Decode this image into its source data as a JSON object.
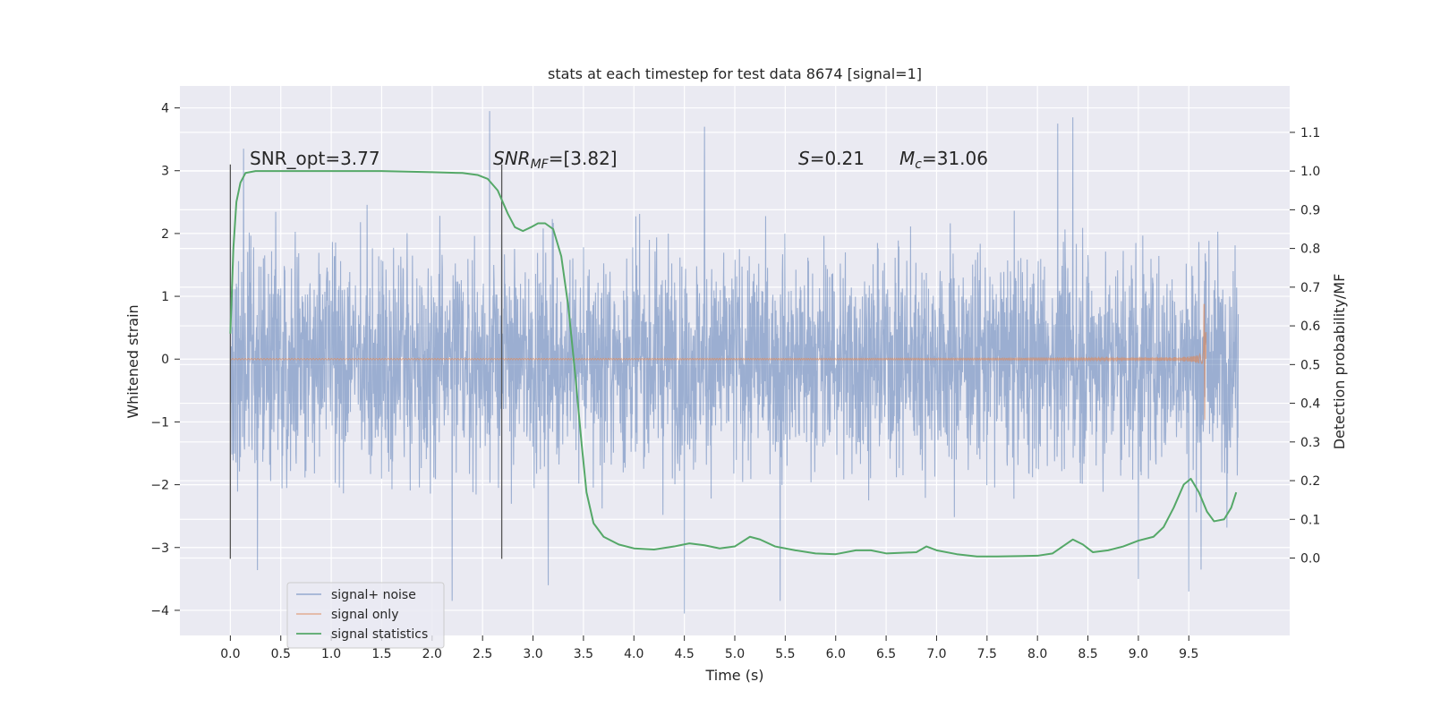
{
  "chart_data": {
    "type": "line",
    "title": "stats at each timestep for test data 8674 [signal=1]",
    "xlabel": "Time (s)",
    "ylabel": "Whitened strain",
    "ylabel_right": "Detection probability/MF",
    "xlim": [
      -0.5,
      10.5
    ],
    "ylim": [
      -4.4,
      4.35
    ],
    "ylim_right": [
      -0.2,
      1.22
    ],
    "xticks": [
      "0.0",
      "0.5",
      "1.0",
      "1.5",
      "2.0",
      "2.5",
      "3.0",
      "3.5",
      "4.0",
      "4.5",
      "5.0",
      "5.5",
      "6.0",
      "6.5",
      "7.0",
      "7.5",
      "8.0",
      "8.5",
      "9.0",
      "9.5"
    ],
    "yticks": [
      "−4",
      "−3",
      "−2",
      "−1",
      "0",
      "1",
      "2",
      "3",
      "4"
    ],
    "yticks_right": [
      "0.0",
      "0.1",
      "0.2",
      "0.3",
      "0.4",
      "0.5",
      "0.6",
      "0.7",
      "0.8",
      "0.9",
      "1.0",
      "1.1"
    ],
    "grid": true,
    "legend_position": "lower-left",
    "colors": {
      "noise": "#4c72b0",
      "signal": "#dd8452",
      "stat": "#55a868",
      "background": "#eaeaf2"
    },
    "annotations": {
      "snr_opt": "SNR_opt=3.77",
      "snr_mf_prefix": "SNR",
      "snr_mf_sub": "MF",
      "snr_mf_value": "=[3.82]",
      "s_var": "S",
      "s_value": "=0.21",
      "mc_var": "M",
      "mc_sub": "c",
      "mc_value": "=31.06"
    },
    "vlines": [
      {
        "x": 0.0,
        "y_range": [
          -3.18,
          3.1
        ]
      },
      {
        "x": 2.69,
        "y_range": [
          -3.18,
          3.1
        ]
      }
    ],
    "series": [
      {
        "name": "signal+ noise",
        "type": "noise",
        "x_range": [
          0.0,
          9.99
        ],
        "amplitude_envelope": 3.3,
        "extremes": [
          [
            0.13,
            3.35
          ],
          [
            0.27,
            -3.36
          ],
          [
            2.2,
            -3.85
          ],
          [
            2.57,
            3.95
          ],
          [
            3.15,
            -3.6
          ],
          [
            4.5,
            -4.05
          ],
          [
            4.7,
            3.7
          ],
          [
            5.45,
            -3.85
          ],
          [
            8.35,
            3.85
          ],
          [
            8.2,
            3.75
          ],
          [
            9.5,
            -3.7
          ],
          [
            9.0,
            -3.5
          ],
          [
            9.62,
            -3.35
          ]
        ]
      },
      {
        "name": "signal only",
        "type": "chirp",
        "x_range": [
          0.0,
          9.67
        ],
        "peak": 0.87,
        "trough": -0.97,
        "x_peak": 9.66
      },
      {
        "name": "signal statistics",
        "axis": "right",
        "points": [
          [
            0.0,
            0.58
          ],
          [
            0.03,
            0.8
          ],
          [
            0.06,
            0.92
          ],
          [
            0.1,
            0.97
          ],
          [
            0.15,
            0.995
          ],
          [
            0.25,
            1.0
          ],
          [
            0.5,
            1.0
          ],
          [
            1.0,
            1.0
          ],
          [
            1.5,
            1.0
          ],
          [
            2.0,
            0.997
          ],
          [
            2.3,
            0.995
          ],
          [
            2.45,
            0.99
          ],
          [
            2.55,
            0.98
          ],
          [
            2.65,
            0.95
          ],
          [
            2.75,
            0.89
          ],
          [
            2.82,
            0.855
          ],
          [
            2.9,
            0.845
          ],
          [
            2.98,
            0.855
          ],
          [
            3.05,
            0.865
          ],
          [
            3.12,
            0.865
          ],
          [
            3.2,
            0.85
          ],
          [
            3.28,
            0.78
          ],
          [
            3.35,
            0.65
          ],
          [
            3.42,
            0.47
          ],
          [
            3.48,
            0.3
          ],
          [
            3.53,
            0.17
          ],
          [
            3.6,
            0.09
          ],
          [
            3.7,
            0.055
          ],
          [
            3.85,
            0.035
          ],
          [
            4.0,
            0.025
          ],
          [
            4.2,
            0.022
          ],
          [
            4.4,
            0.03
          ],
          [
            4.55,
            0.038
          ],
          [
            4.7,
            0.033
          ],
          [
            4.85,
            0.025
          ],
          [
            5.0,
            0.03
          ],
          [
            5.15,
            0.055
          ],
          [
            5.25,
            0.048
          ],
          [
            5.4,
            0.03
          ],
          [
            5.6,
            0.02
          ],
          [
            5.8,
            0.012
          ],
          [
            6.0,
            0.01
          ],
          [
            6.2,
            0.02
          ],
          [
            6.35,
            0.02
          ],
          [
            6.5,
            0.012
          ],
          [
            6.8,
            0.015
          ],
          [
            6.9,
            0.03
          ],
          [
            7.0,
            0.02
          ],
          [
            7.2,
            0.01
          ],
          [
            7.4,
            0.004
          ],
          [
            7.6,
            0.004
          ],
          [
            8.0,
            0.006
          ],
          [
            8.15,
            0.012
          ],
          [
            8.25,
            0.03
          ],
          [
            8.35,
            0.048
          ],
          [
            8.45,
            0.035
          ],
          [
            8.55,
            0.015
          ],
          [
            8.7,
            0.02
          ],
          [
            8.85,
            0.03
          ],
          [
            9.0,
            0.045
          ],
          [
            9.15,
            0.055
          ],
          [
            9.25,
            0.08
          ],
          [
            9.35,
            0.13
          ],
          [
            9.45,
            0.19
          ],
          [
            9.52,
            0.205
          ],
          [
            9.6,
            0.17
          ],
          [
            9.68,
            0.12
          ],
          [
            9.75,
            0.095
          ],
          [
            9.85,
            0.1
          ],
          [
            9.92,
            0.13
          ],
          [
            9.97,
            0.17
          ]
        ]
      }
    ]
  }
}
